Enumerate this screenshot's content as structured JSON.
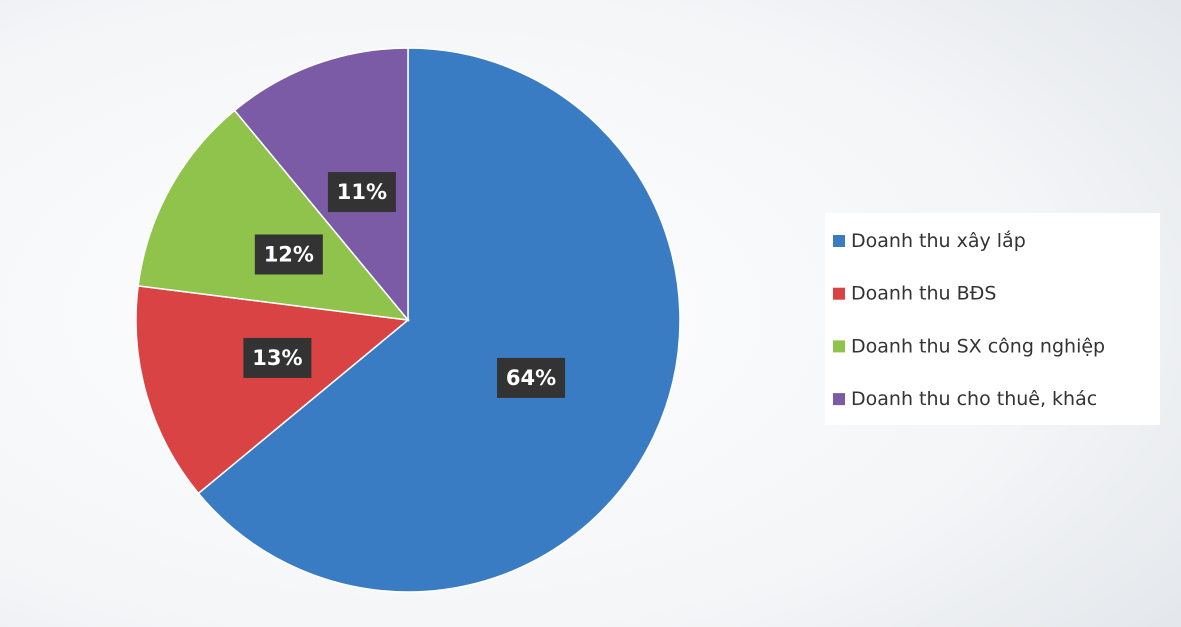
{
  "chart_data": {
    "type": "pie",
    "categories": [
      "Doanh thu xây lắp",
      "Doanh thu BĐS",
      "Doanh thu SX công nghiệp",
      "Doanh thu cho thuê, khác"
    ],
    "values": [
      64,
      13,
      12,
      11
    ],
    "value_labels": [
      "64%",
      "13%",
      "12%",
      "11%"
    ],
    "colors": [
      "#3a7cc3",
      "#d94343",
      "#8fc34b",
      "#7c5ba6"
    ],
    "legend": "right"
  }
}
